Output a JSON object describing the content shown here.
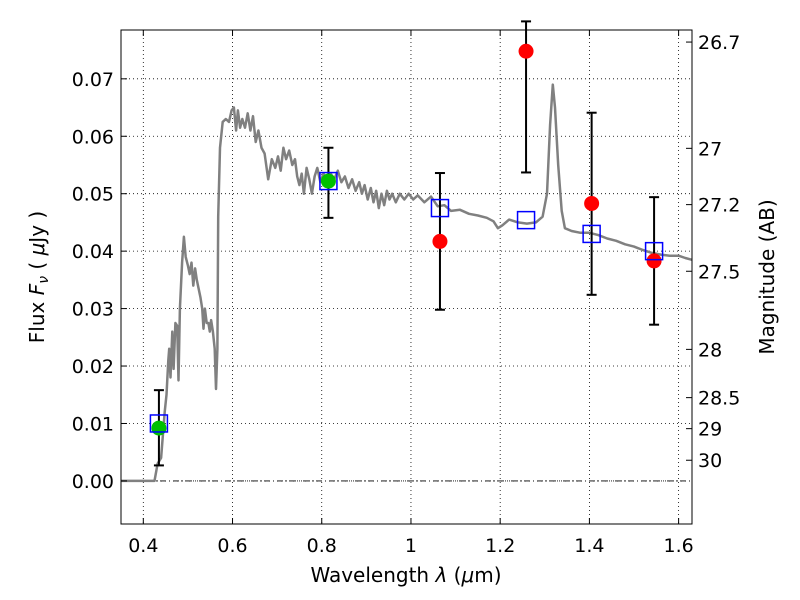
{
  "chart_data": {
    "type": "scatter",
    "title": "",
    "xlabel_pre": "Wavelength  ",
    "xlabel_lambda": "λ",
    "xlabel_post": " (",
    "xlabel_mu": "μ",
    "xlabel_end": "m)",
    "ylabel_pre": "Flux  ",
    "ylabel_F": "F",
    "ylabel_sub": "ν",
    "ylabel_mid": "  (  ",
    "ylabel_mu": "μ",
    "ylabel_end": "Jy  )",
    "ylabel_right": "Magnitude (AB)",
    "xlim": [
      0.35,
      1.63
    ],
    "ylim": [
      -0.0075,
      0.0785
    ],
    "grid": true,
    "x_ticks": [
      {
        "value": 0.4,
        "label": "0.4"
      },
      {
        "value": 0.6,
        "label": "0.6"
      },
      {
        "value": 0.8,
        "label": "0.8"
      },
      {
        "value": 1.0,
        "label": "1"
      },
      {
        "value": 1.2,
        "label": "1.2"
      },
      {
        "value": 1.4,
        "label": "1.4"
      },
      {
        "value": 1.6,
        "label": "1.6"
      }
    ],
    "y_ticks": [
      {
        "value": 0.0,
        "label": "0.00"
      },
      {
        "value": 0.01,
        "label": "0.01"
      },
      {
        "value": 0.02,
        "label": "0.02"
      },
      {
        "value": 0.03,
        "label": "0.03"
      },
      {
        "value": 0.04,
        "label": "0.04"
      },
      {
        "value": 0.05,
        "label": "0.05"
      },
      {
        "value": 0.06,
        "label": "0.06"
      },
      {
        "value": 0.07,
        "label": "0.07"
      }
    ],
    "mag_ticks": [
      {
        "flux": 0.0764,
        "label": "26.7"
      },
      {
        "flux": 0.0579,
        "label": "27"
      },
      {
        "flux": 0.0481,
        "label": "27.2"
      },
      {
        "flux": 0.0365,
        "label": "27.5"
      },
      {
        "flux": 0.0229,
        "label": "28"
      },
      {
        "flux": 0.0145,
        "label": "28.5"
      },
      {
        "flux": 0.0091,
        "label": "29"
      },
      {
        "flux": 0.0036,
        "label": "30"
      }
    ],
    "model_spectrum": {
      "color": "#808080",
      "points": [
        [
          0.35,
          0.0
        ],
        [
          0.425,
          0.0
        ],
        [
          0.432,
          0.003
        ],
        [
          0.44,
          0.004
        ],
        [
          0.448,
          0.012
        ],
        [
          0.452,
          0.015
        ],
        [
          0.456,
          0.021
        ],
        [
          0.458,
          0.023
        ],
        [
          0.461,
          0.018
        ],
        [
          0.465,
          0.026
        ],
        [
          0.468,
          0.0195
        ],
        [
          0.472,
          0.0275
        ],
        [
          0.476,
          0.027
        ],
        [
          0.479,
          0.0175
        ],
        [
          0.482,
          0.03
        ],
        [
          0.487,
          0.038
        ],
        [
          0.491,
          0.0425
        ],
        [
          0.495,
          0.039
        ],
        [
          0.5,
          0.0375
        ],
        [
          0.504,
          0.036
        ],
        [
          0.508,
          0.038
        ],
        [
          0.512,
          0.034
        ],
        [
          0.516,
          0.037
        ],
        [
          0.52,
          0.035
        ],
        [
          0.524,
          0.0335
        ],
        [
          0.528,
          0.032
        ],
        [
          0.532,
          0.03
        ],
        [
          0.535,
          0.0265
        ],
        [
          0.538,
          0.03
        ],
        [
          0.542,
          0.0275
        ],
        [
          0.546,
          0.0275
        ],
        [
          0.549,
          0.026
        ],
        [
          0.552,
          0.028
        ],
        [
          0.556,
          0.026
        ],
        [
          0.56,
          0.023
        ],
        [
          0.563,
          0.016
        ],
        [
          0.566,
          0.023
        ],
        [
          0.568,
          0.046
        ],
        [
          0.572,
          0.058
        ],
        [
          0.578,
          0.0625
        ],
        [
          0.585,
          0.063
        ],
        [
          0.592,
          0.0625
        ],
        [
          0.598,
          0.0645
        ],
        [
          0.603,
          0.065
        ],
        [
          0.608,
          0.061
        ],
        [
          0.612,
          0.0645
        ],
        [
          0.617,
          0.0615
        ],
        [
          0.622,
          0.063
        ],
        [
          0.628,
          0.0615
        ],
        [
          0.634,
          0.064
        ],
        [
          0.64,
          0.061
        ],
        [
          0.646,
          0.0635
        ],
        [
          0.652,
          0.059
        ],
        [
          0.658,
          0.061
        ],
        [
          0.665,
          0.058
        ],
        [
          0.672,
          0.057
        ],
        [
          0.68,
          0.0525
        ],
        [
          0.688,
          0.056
        ],
        [
          0.696,
          0.0545
        ],
        [
          0.702,
          0.0565
        ],
        [
          0.708,
          0.054
        ],
        [
          0.714,
          0.058
        ],
        [
          0.72,
          0.056
        ],
        [
          0.727,
          0.0575
        ],
        [
          0.734,
          0.055
        ],
        [
          0.74,
          0.056
        ],
        [
          0.745,
          0.053
        ],
        [
          0.75,
          0.0515
        ],
        [
          0.755,
          0.0535
        ],
        [
          0.76,
          0.05
        ],
        [
          0.766,
          0.0545
        ],
        [
          0.772,
          0.0525
        ],
        [
          0.778,
          0.05
        ],
        [
          0.784,
          0.053
        ],
        [
          0.79,
          0.0545
        ],
        [
          0.797,
          0.052
        ],
        [
          0.804,
          0.0535
        ],
        [
          0.812,
          0.052
        ],
        [
          0.82,
          0.0535
        ],
        [
          0.828,
          0.0525
        ],
        [
          0.836,
          0.054
        ],
        [
          0.844,
          0.052
        ],
        [
          0.852,
          0.053
        ],
        [
          0.86,
          0.051
        ],
        [
          0.868,
          0.0525
        ],
        [
          0.876,
          0.0505
        ],
        [
          0.884,
          0.052
        ],
        [
          0.89,
          0.05
        ],
        [
          0.896,
          0.0515
        ],
        [
          0.903,
          0.049
        ],
        [
          0.91,
          0.051
        ],
        [
          0.916,
          0.0485
        ],
        [
          0.922,
          0.0505
        ],
        [
          0.928,
          0.0475
        ],
        [
          0.934,
          0.05
        ],
        [
          0.94,
          0.048
        ],
        [
          0.946,
          0.0505
        ],
        [
          0.952,
          0.049
        ],
        [
          0.958,
          0.05
        ],
        [
          0.966,
          0.0485
        ],
        [
          0.975,
          0.05
        ],
        [
          0.985,
          0.049
        ],
        [
          0.995,
          0.05
        ],
        [
          1.005,
          0.049
        ],
        [
          1.015,
          0.0497
        ],
        [
          1.03,
          0.0485
        ],
        [
          1.045,
          0.0495
        ],
        [
          1.06,
          0.0478
        ],
        [
          1.075,
          0.048
        ],
        [
          1.09,
          0.047
        ],
        [
          1.11,
          0.0472
        ],
        [
          1.13,
          0.0465
        ],
        [
          1.15,
          0.0462
        ],
        [
          1.17,
          0.0458
        ],
        [
          1.185,
          0.0452
        ],
        [
          1.195,
          0.044
        ],
        [
          1.205,
          0.0445
        ],
        [
          1.22,
          0.0455
        ],
        [
          1.24,
          0.045
        ],
        [
          1.26,
          0.0448
        ],
        [
          1.28,
          0.045
        ],
        [
          1.295,
          0.046
        ],
        [
          1.305,
          0.05
        ],
        [
          1.312,
          0.062
        ],
        [
          1.318,
          0.069
        ],
        [
          1.323,
          0.065
        ],
        [
          1.33,
          0.055
        ],
        [
          1.338,
          0.047
        ],
        [
          1.345,
          0.044
        ],
        [
          1.36,
          0.0435
        ],
        [
          1.38,
          0.0432
        ],
        [
          1.4,
          0.0432
        ],
        [
          1.42,
          0.0428
        ],
        [
          1.44,
          0.0422
        ],
        [
          1.46,
          0.0418
        ],
        [
          1.48,
          0.0412
        ],
        [
          1.5,
          0.0408
        ],
        [
          1.52,
          0.0402
        ],
        [
          1.54,
          0.0397
        ],
        [
          1.56,
          0.0394
        ],
        [
          1.58,
          0.0392
        ],
        [
          1.6,
          0.0392
        ],
        [
          1.615,
          0.0388
        ],
        [
          1.63,
          0.0385
        ]
      ]
    },
    "model_photometry": {
      "color": "#0000ff",
      "points": [
        [
          0.435,
          0.01
        ],
        [
          0.815,
          0.0522
        ],
        [
          1.065,
          0.0475
        ],
        [
          1.258,
          0.0454
        ],
        [
          1.405,
          0.043
        ],
        [
          1.545,
          0.04
        ]
      ]
    },
    "detections": {
      "color": "#00c000",
      "points": [
        [
          0.435,
          0.0092
        ],
        [
          0.815,
          0.0522
        ]
      ]
    },
    "nondetections": {
      "color": "#ff0000",
      "points": [
        [
          1.065,
          0.0417
        ],
        [
          1.258,
          0.0748
        ],
        [
          1.405,
          0.0483
        ],
        [
          1.545,
          0.0383
        ]
      ]
    },
    "error_bars": [
      {
        "x": 0.435,
        "low": 0.0027,
        "high": 0.0158
      },
      {
        "x": 0.815,
        "low": 0.0458,
        "high": 0.058
      },
      {
        "x": 1.065,
        "low": 0.0298,
        "high": 0.0536
      },
      {
        "x": 1.258,
        "low": 0.0537,
        "high": 0.08
      },
      {
        "x": 1.405,
        "low": 0.0324,
        "high": 0.0641
      },
      {
        "x": 1.545,
        "low": 0.0272,
        "high": 0.0494
      }
    ]
  }
}
